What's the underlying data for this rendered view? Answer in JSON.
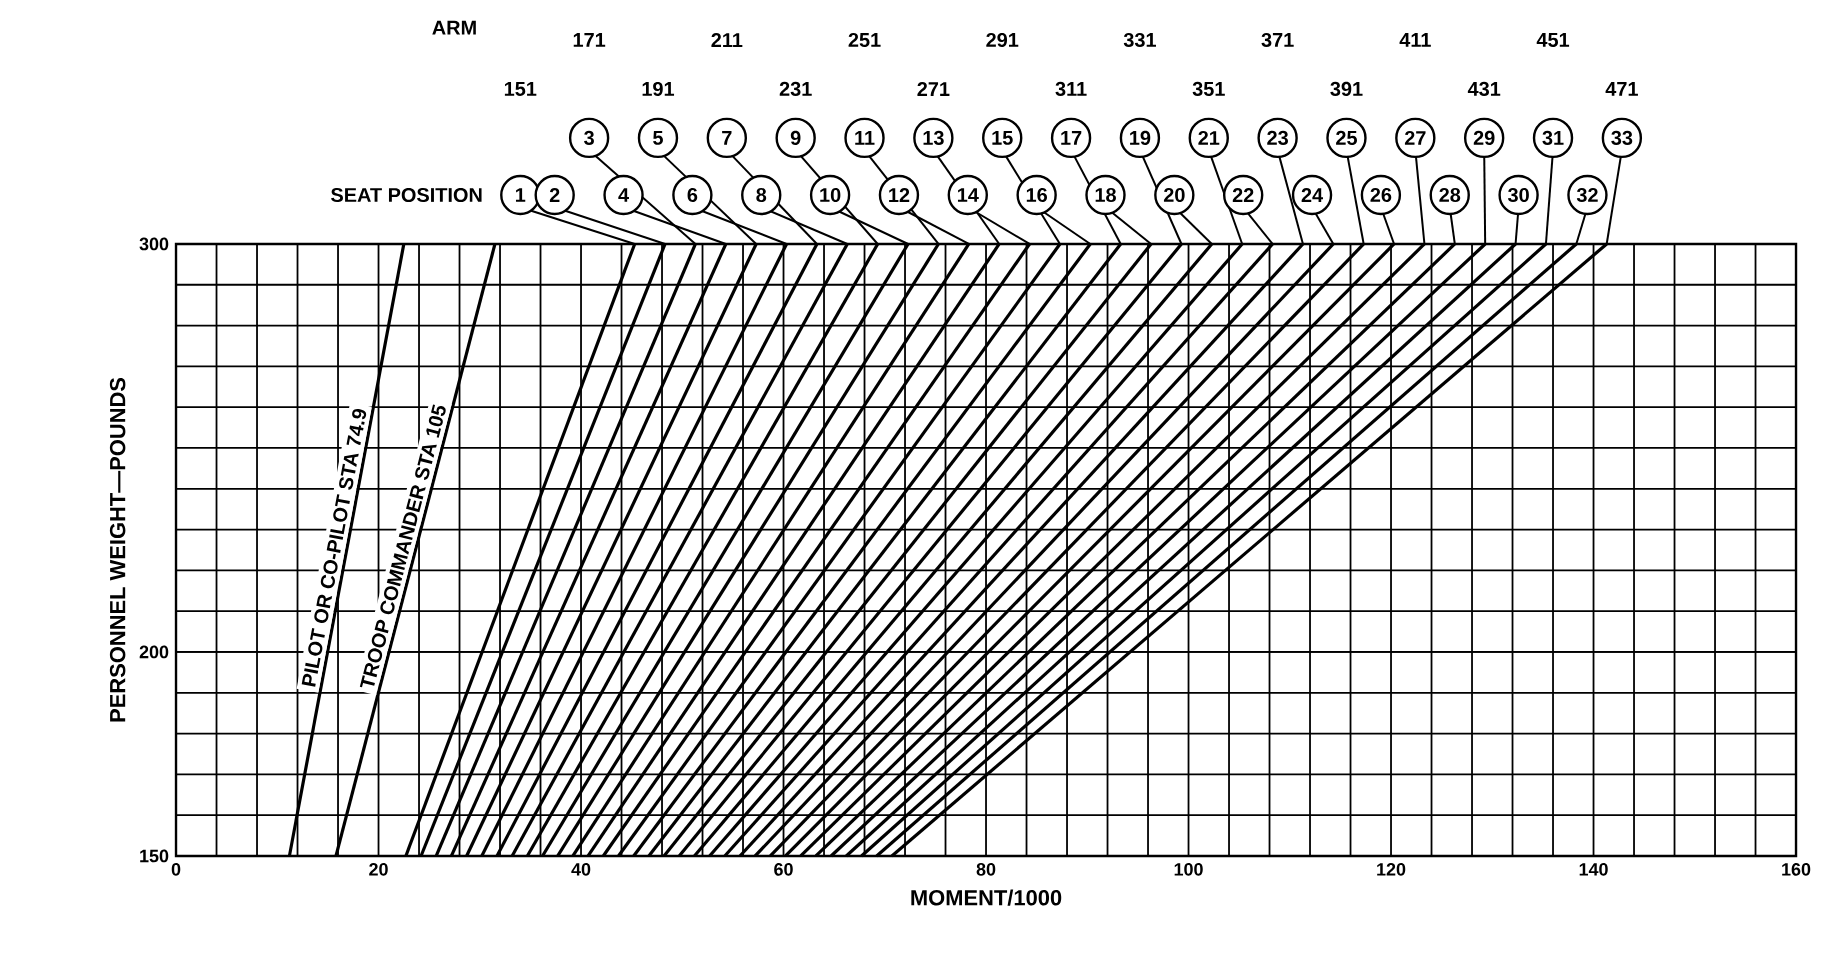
{
  "chart_data": {
    "type": "line",
    "xlabel": "MOMENT/1000",
    "ylabel": "PERSONNEL WEIGHT—POUNDS",
    "xlim": [
      0,
      160
    ],
    "ylim": [
      150,
      300
    ],
    "xticks": [
      0,
      20,
      40,
      60,
      80,
      100,
      120,
      140,
      160
    ],
    "yticks": [
      150,
      200,
      300
    ],
    "grid": true,
    "legend": "top",
    "marker": "none",
    "line_style": "solid",
    "annotations": [
      "ARM",
      "SEAT POSITION",
      "151",
      "171",
      "191",
      "211",
      "231",
      "251",
      "271",
      "291",
      "311",
      "331",
      "351",
      "371",
      "391",
      "411",
      "431",
      "451",
      "471"
    ],
    "series": [
      {
        "name": "PILOT OR CO-PILOT STA 74.9",
        "color": "#000000",
        "x": [
          11.2,
          22.5
        ],
        "values": [
          150,
          300
        ]
      },
      {
        "name": "TROOP COMMANDER STA 105",
        "color": "#000000",
        "x": [
          15.8,
          31.5
        ],
        "values": [
          150,
          300
        ]
      },
      {
        "name": "1",
        "color": "#000000",
        "x": [
          22.7,
          45.3
        ],
        "values": [
          150,
          300
        ]
      },
      {
        "name": "2",
        "color": "#000000",
        "x": [
          24.2,
          48.3
        ],
        "values": [
          150,
          300
        ]
      },
      {
        "name": "3",
        "color": "#000000",
        "x": [
          25.7,
          51.3
        ],
        "values": [
          150,
          300
        ]
      },
      {
        "name": "4",
        "color": "#000000",
        "x": [
          27.2,
          54.3
        ],
        "values": [
          150,
          300
        ]
      },
      {
        "name": "5",
        "color": "#000000",
        "x": [
          28.7,
          57.3
        ],
        "values": [
          150,
          300
        ]
      },
      {
        "name": "6",
        "color": "#000000",
        "x": [
          30.2,
          60.3
        ],
        "values": [
          150,
          300
        ]
      },
      {
        "name": "7",
        "color": "#000000",
        "x": [
          31.7,
          63.3
        ],
        "values": [
          150,
          300
        ]
      },
      {
        "name": "8",
        "color": "#000000",
        "x": [
          33.2,
          66.3
        ],
        "values": [
          150,
          300
        ]
      },
      {
        "name": "9",
        "color": "#000000",
        "x": [
          34.7,
          69.3
        ],
        "values": [
          150,
          300
        ]
      },
      {
        "name": "10",
        "color": "#000000",
        "x": [
          36.2,
          72.3
        ],
        "values": [
          150,
          300
        ]
      },
      {
        "name": "11",
        "color": "#000000",
        "x": [
          37.7,
          75.3
        ],
        "values": [
          150,
          300
        ]
      },
      {
        "name": "12",
        "color": "#000000",
        "x": [
          39.2,
          78.3
        ],
        "values": [
          150,
          300
        ]
      },
      {
        "name": "13",
        "color": "#000000",
        "x": [
          40.7,
          81.3
        ],
        "values": [
          150,
          300
        ]
      },
      {
        "name": "14",
        "color": "#000000",
        "x": [
          42.2,
          84.3
        ],
        "values": [
          150,
          300
        ]
      },
      {
        "name": "15",
        "color": "#000000",
        "x": [
          43.7,
          87.3
        ],
        "values": [
          150,
          300
        ]
      },
      {
        "name": "16",
        "color": "#000000",
        "x": [
          45.2,
          90.3
        ],
        "values": [
          150,
          300
        ]
      },
      {
        "name": "17",
        "color": "#000000",
        "x": [
          46.7,
          93.3
        ],
        "values": [
          150,
          300
        ]
      },
      {
        "name": "18",
        "color": "#000000",
        "x": [
          48.2,
          96.3
        ],
        "values": [
          150,
          300
        ]
      },
      {
        "name": "19",
        "color": "#000000",
        "x": [
          49.7,
          99.3
        ],
        "values": [
          150,
          300
        ]
      },
      {
        "name": "20",
        "color": "#000000",
        "x": [
          51.2,
          102.3
        ],
        "values": [
          150,
          300
        ]
      },
      {
        "name": "21",
        "color": "#000000",
        "x": [
          52.7,
          105.3
        ],
        "values": [
          150,
          300
        ]
      },
      {
        "name": "22",
        "color": "#000000",
        "x": [
          54.2,
          108.3
        ],
        "values": [
          150,
          300
        ]
      },
      {
        "name": "23",
        "color": "#000000",
        "x": [
          55.7,
          111.3
        ],
        "values": [
          150,
          300
        ]
      },
      {
        "name": "24",
        "color": "#000000",
        "x": [
          57.2,
          114.3
        ],
        "values": [
          150,
          300
        ]
      },
      {
        "name": "25",
        "color": "#000000",
        "x": [
          58.7,
          117.3
        ],
        "values": [
          150,
          300
        ]
      },
      {
        "name": "26",
        "color": "#000000",
        "x": [
          60.2,
          120.3
        ],
        "values": [
          150,
          300
        ]
      },
      {
        "name": "27",
        "color": "#000000",
        "x": [
          61.7,
          123.3
        ],
        "values": [
          150,
          300
        ]
      },
      {
        "name": "28",
        "color": "#000000",
        "x": [
          63.2,
          126.3
        ],
        "values": [
          150,
          300
        ]
      },
      {
        "name": "29",
        "color": "#000000",
        "x": [
          64.7,
          129.3
        ],
        "values": [
          150,
          300
        ]
      },
      {
        "name": "30",
        "color": "#000000",
        "x": [
          66.2,
          132.3
        ],
        "values": [
          150,
          300
        ]
      },
      {
        "name": "31",
        "color": "#000000",
        "x": [
          67.7,
          135.3
        ],
        "values": [
          150,
          300
        ]
      },
      {
        "name": "32",
        "color": "#000000",
        "x": [
          69.2,
          138.3
        ],
        "values": [
          150,
          300
        ]
      },
      {
        "name": "33",
        "color": "#000000",
        "x": [
          70.7,
          141.3
        ],
        "values": [
          150,
          300
        ]
      }
    ]
  }
}
